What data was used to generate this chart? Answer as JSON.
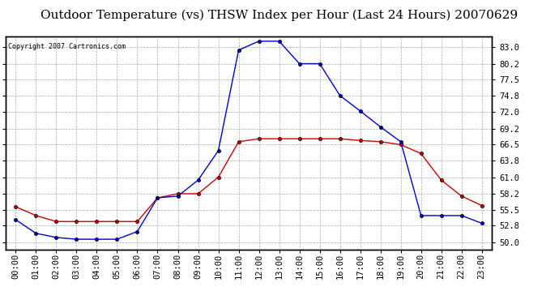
{
  "title": "Outdoor Temperature (vs) THSW Index per Hour (Last 24 Hours) 20070629",
  "copyright": "Copyright 2007 Cartronics.com",
  "hours": [
    0,
    1,
    2,
    3,
    4,
    5,
    6,
    7,
    8,
    9,
    10,
    11,
    12,
    13,
    14,
    15,
    16,
    17,
    18,
    19,
    20,
    21,
    22,
    23
  ],
  "temp": [
    56.0,
    54.5,
    53.5,
    53.5,
    53.5,
    53.5,
    53.5,
    57.5,
    58.2,
    58.2,
    61.0,
    67.0,
    67.5,
    67.5,
    67.5,
    67.5,
    67.5,
    67.2,
    67.0,
    66.5,
    65.0,
    60.5,
    57.8,
    56.2
  ],
  "thsw": [
    53.8,
    51.5,
    50.8,
    50.5,
    50.5,
    50.5,
    51.8,
    57.5,
    57.8,
    60.5,
    65.5,
    82.5,
    84.0,
    84.0,
    80.2,
    80.2,
    74.8,
    72.2,
    69.5,
    67.0,
    54.5,
    54.5,
    54.5,
    53.2
  ],
  "temp_color": "#cc0000",
  "thsw_color": "#0000cc",
  "yticks": [
    50.0,
    52.8,
    55.5,
    58.2,
    61.0,
    63.8,
    66.5,
    69.2,
    72.0,
    74.8,
    77.5,
    80.2,
    83.0
  ],
  "ymin": 48.8,
  "ymax": 84.8,
  "bg_color": "#ffffff",
  "plot_bg": "#ffffff",
  "grid_color": "#aaaaaa",
  "title_fontsize": 11,
  "tick_fontsize": 7.5
}
